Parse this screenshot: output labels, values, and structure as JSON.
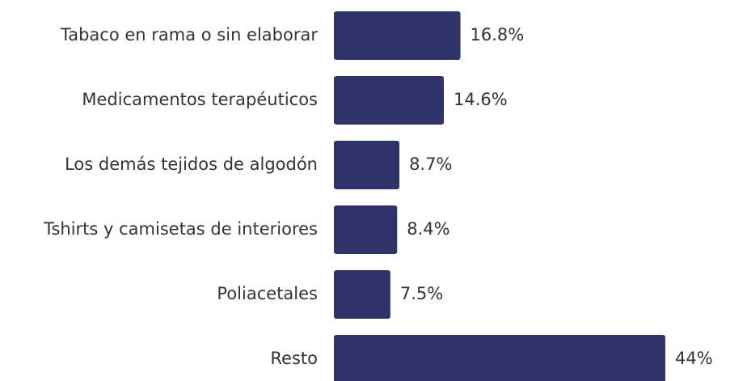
{
  "chart_data": {
    "type": "bar",
    "orientation": "horizontal",
    "categories": [
      "Tabaco en rama o sin elaborar",
      "Medicamentos terapéuticos",
      "Los demás tejidos de algodón",
      "Tshirts y camisetas de interiores",
      "Poliacetales",
      "Resto"
    ],
    "values": [
      16.8,
      14.6,
      8.7,
      8.4,
      7.5,
      44
    ],
    "value_labels": [
      "16.8%",
      "14.6%",
      "8.7%",
      "8.4%",
      "7.5%",
      "44%"
    ],
    "color": "#2e3468"
  }
}
